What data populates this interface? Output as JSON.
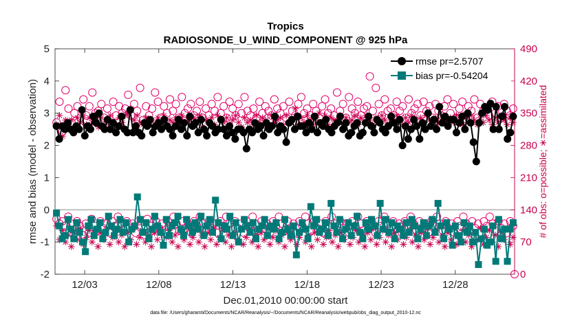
{
  "chart_data": {
    "type": "line",
    "title": "Tropics",
    "subtitle": "RADIOSONDE_U_WIND_COMPONENT @ 925 hPa",
    "xlabel": "Dec.01,2010 00:00:00 start",
    "ylabel": "rmse and bias (model - observation)",
    "ylabel_right": "# of obs: o=possible; ∗=assimilated",
    "xlim": [
      0,
      31
    ],
    "ylim": [
      -2,
      5
    ],
    "ylim_right": [
      0,
      490
    ],
    "x_ticks": [
      2,
      7,
      12,
      17,
      22,
      27
    ],
    "x_tick_labels": [
      "12/03",
      "12/08",
      "12/13",
      "12/18",
      "12/23",
      "12/28"
    ],
    "y_ticks": [
      "-2",
      "-1",
      "0",
      "1",
      "2",
      "3",
      "4",
      "5"
    ],
    "y_right_ticks": [
      "0",
      "70",
      "140",
      "210",
      "280",
      "350",
      "420",
      "490"
    ],
    "zero_line": 0,
    "legend_position": "top-right",
    "series": [
      {
        "name": "rmse pr=2.5707",
        "color": "#000000",
        "marker": "circle",
        "values": [
          2.6,
          2.2,
          2.6,
          2.5,
          2.7,
          2.5,
          2.4,
          2.6,
          2.5,
          3.1,
          2.3,
          2.6,
          2.5,
          2.9,
          2.7,
          3.0,
          2.6,
          2.5,
          2.8,
          2.5,
          2.7,
          2.4,
          2.6,
          2.9,
          2.5,
          2.4,
          3.1,
          2.4,
          2.6,
          2.4,
          2.3,
          2.7,
          2.6,
          2.8,
          2.4,
          2.6,
          2.7,
          2.5,
          2.8,
          2.6,
          2.5,
          2.3,
          2.6,
          2.8,
          2.5,
          2.7,
          2.3,
          2.9,
          2.6,
          2.7,
          2.4,
          2.8,
          2.5,
          2.3,
          2.7,
          2.6,
          2.4,
          2.5,
          2.8,
          2.5,
          2.3,
          2.6,
          2.4,
          2.2,
          2.5,
          2.5,
          2.4,
          1.9,
          2.5,
          2.4,
          2.7,
          2.5,
          2.6,
          2.3,
          2.7,
          2.5,
          2.6,
          2.9,
          2.4,
          2.6,
          2.5,
          2.1,
          2.7,
          2.8,
          2.5,
          2.9,
          2.6,
          2.6,
          2.4,
          2.7,
          2.5,
          2.9,
          2.4,
          2.7,
          2.6,
          2.8,
          2.5,
          2.4,
          2.6,
          2.7,
          2.9,
          2.5,
          2.7,
          2.3,
          2.4,
          2.6,
          2.7,
          2.3,
          2.4,
          2.7,
          2.9,
          2.6,
          2.4,
          2.8,
          2.7,
          2.5,
          2.4,
          2.6,
          2.9,
          2.7,
          2.5,
          2.8,
          2.0,
          2.6,
          2.2,
          2.5,
          2.8,
          2.6,
          2.2,
          2.7,
          2.5,
          3.0,
          2.6,
          2.8,
          2.5,
          3.2,
          2.7,
          2.9,
          2.6,
          2.8,
          2.8,
          2.4,
          2.7,
          2.9,
          2.5,
          3.0,
          2.7,
          2.1,
          1.5,
          2.7,
          3.0,
          3.2,
          3.1,
          3.3,
          2.5,
          3.2,
          2.5,
          2.9,
          3.2,
          2.2,
          2.4,
          2.9
        ]
      },
      {
        "name": "bias pr=-0.54204",
        "color": "#007a78",
        "marker": "square",
        "values": [
          -0.1,
          -0.5,
          -0.9,
          -0.8,
          -0.3,
          -0.6,
          -0.9,
          -0.4,
          -0.7,
          -1.0,
          -1.3,
          -0.5,
          -0.3,
          -0.8,
          -0.6,
          -0.4,
          -0.9,
          -0.7,
          -0.2,
          -0.5,
          -0.8,
          -0.6,
          -0.3,
          -0.7,
          -0.4,
          -1.0,
          -0.6,
          -0.5,
          0.4,
          -0.3,
          -0.7,
          -0.4,
          -0.9,
          -0.6,
          -0.2,
          -0.5,
          -0.7,
          -1.1,
          -0.3,
          -0.8,
          -0.5,
          -0.4,
          -0.2,
          -0.6,
          -0.8,
          -0.3,
          -0.5,
          -0.7,
          -0.4,
          -0.6,
          -0.2,
          -0.8,
          -0.5,
          -0.3,
          -0.7,
          0.3,
          -0.4,
          -0.9,
          -0.5,
          -0.6,
          -0.2,
          -0.8,
          -0.4,
          -1.0,
          -0.6,
          -0.3,
          -0.5,
          -0.7,
          -0.4,
          -0.9,
          -0.6,
          -0.5,
          -0.3,
          -0.8,
          -0.5,
          -0.6,
          -0.4,
          -0.9,
          -0.7,
          -0.3,
          -0.6,
          -0.8,
          -0.5,
          -1.4,
          -0.7,
          -0.4,
          -0.6,
          -0.9,
          0.1,
          -0.5,
          -0.3,
          -0.7,
          -0.6,
          -0.4,
          -0.8,
          0.2,
          -0.5,
          -0.7,
          -0.3,
          -0.9,
          -0.6,
          -0.4,
          -0.8,
          -0.5,
          -0.2,
          -0.7,
          -0.9,
          -0.4,
          -0.6,
          -0.3,
          -0.5,
          -0.8,
          0.2,
          -0.6,
          -0.3,
          -0.7,
          -0.4,
          -0.9,
          -0.5,
          -0.6,
          -0.8,
          -0.4,
          -0.7,
          -0.3,
          -0.5,
          -0.9,
          -0.6,
          -0.4,
          -0.8,
          -0.5,
          -0.3,
          -0.7,
          0.2,
          -0.5,
          -0.9,
          -0.4,
          -0.6,
          -1.1,
          -0.5,
          -0.8,
          -1.0,
          -0.4,
          -0.7,
          -0.5,
          -1.0,
          -0.7,
          -1.7,
          -0.9,
          -0.6,
          -1.1,
          -1.0,
          -0.5,
          -1.6,
          -0.3,
          -0.9,
          -0.6,
          -1.6,
          -0.6,
          -0.4
        ]
      },
      {
        "name": "possible obs",
        "color": "#e3006a",
        "marker": "open-circle",
        "axis": "right",
        "values": [
          330,
          375,
          310,
          400,
          360,
          330,
          350,
          365,
          340,
          380,
          345,
          365,
          395,
          350,
          355,
          370,
          340,
          360,
          330,
          375,
          345,
          365,
          350,
          360,
          390,
          345,
          370,
          355,
          405,
          335,
          365,
          345,
          360,
          395,
          375,
          340,
          365,
          350,
          380,
          355,
          370,
          340,
          385,
          350,
          360,
          370,
          345,
          355,
          375,
          340,
          360,
          345,
          370,
          355,
          385,
          350,
          365,
          340,
          375,
          360,
          345,
          370,
          350,
          385,
          355,
          345,
          360,
          340,
          375,
          350,
          365,
          355,
          345,
          380,
          360,
          350,
          365,
          340,
          375,
          355,
          345,
          370,
          385,
          350,
          360,
          345,
          370,
          355,
          340,
          365,
          380,
          350,
          360,
          345,
          395,
          355,
          370,
          340,
          385,
          360,
          350,
          375,
          345,
          360,
          365,
          430,
          355,
          405,
          370,
          345,
          380,
          355,
          360,
          345,
          375,
          355,
          365,
          340,
          380,
          350,
          360,
          370,
          345,
          375,
          355,
          365,
          340,
          370,
          355,
          345,
          365,
          380,
          350,
          370,
          340,
          360,
          375,
          345,
          365,
          355,
          380,
          340,
          370,
          355,
          360,
          345,
          375,
          350,
          365,
          340,
          370,
          355,
          345,
          360
        ]
      },
      {
        "name": "assimilated obs",
        "color": "#c8004e",
        "marker": "asterisk",
        "axis": "right",
        "values": [
          325,
          345,
          300,
          335,
          325,
          335,
          315,
          340,
          330,
          345,
          325,
          340,
          330,
          335,
          320,
          340,
          325,
          335,
          345,
          330,
          325,
          340,
          330,
          345,
          350,
          360,
          335,
          345,
          330,
          325,
          340,
          330,
          335,
          325,
          340,
          330,
          345,
          320,
          335,
          330,
          340,
          325,
          345,
          330,
          335,
          325,
          340,
          330,
          345,
          320,
          335,
          330,
          340,
          325,
          345,
          335,
          330,
          340,
          325,
          335,
          345,
          330,
          320,
          340,
          330,
          335,
          325,
          345,
          330,
          340,
          335,
          325,
          345,
          330,
          335,
          340,
          325,
          345,
          330,
          335,
          360,
          325,
          340,
          330,
          345,
          335,
          325,
          340,
          350,
          330,
          345,
          325,
          340,
          335,
          330,
          345,
          325,
          340,
          330,
          335,
          345,
          325,
          340,
          330,
          345,
          335,
          325,
          340,
          330,
          345,
          335,
          325,
          340,
          330,
          345,
          335,
          325,
          340,
          330,
          345,
          335,
          325,
          340,
          330,
          345,
          335,
          325,
          340,
          330,
          345,
          335,
          325,
          340,
          330,
          345,
          335,
          325,
          340,
          330,
          345,
          335,
          325,
          340,
          330,
          345,
          335,
          325,
          340,
          330,
          345,
          335,
          325,
          340,
          330
        ]
      },
      {
        "name": "possible obs (bias)",
        "color": "#e3006a",
        "marker": "open-circle",
        "axis": "right",
        "values": [
          120,
          110,
          115,
          105,
          125,
          110,
          95,
          115,
          105,
          85,
          110,
          90,
          120,
          105,
          95,
          115,
          100,
          110,
          90,
          115,
          105,
          125,
          110,
          95,
          115,
          100,
          110,
          90,
          115,
          105,
          85,
          120,
          105,
          95,
          115,
          100,
          110,
          90,
          115,
          105,
          125,
          110,
          95,
          115,
          100,
          110,
          90,
          115,
          105,
          125,
          110,
          95,
          115,
          100,
          110,
          90,
          115,
          105,
          125,
          110,
          95,
          115,
          100,
          110,
          90,
          115,
          105,
          125,
          110,
          95,
          115,
          100,
          110,
          90,
          115,
          105,
          125,
          110,
          95,
          115,
          100,
          110,
          90,
          115,
          105,
          125,
          110,
          95,
          115,
          100,
          110,
          90,
          115,
          105,
          125,
          110,
          95,
          115,
          100,
          110,
          90,
          115,
          105,
          125,
          110,
          95,
          115,
          100,
          110,
          90,
          115,
          105,
          125,
          110,
          95,
          115,
          100,
          110,
          90,
          115,
          105,
          125,
          110,
          95,
          115,
          100,
          110,
          90,
          115,
          105,
          125,
          110,
          95,
          115,
          100,
          110,
          90,
          115,
          105,
          125,
          110,
          95,
          115,
          100,
          110,
          90,
          115,
          105,
          125,
          110,
          95,
          115,
          100,
          110,
          90,
          115,
          105
        ]
      },
      {
        "name": "assimilated obs (bias)",
        "color": "#c8004e",
        "marker": "asterisk",
        "axis": "right",
        "values": [
          105,
          75,
          95,
          70,
          85,
          60,
          90,
          75,
          100,
          65,
          80,
          95,
          70,
          85,
          60,
          90,
          75,
          100,
          65,
          80,
          95,
          70,
          85,
          60,
          90,
          75,
          100,
          65,
          80,
          95,
          70,
          85,
          60,
          90,
          75,
          100,
          65,
          80,
          95,
          70,
          85,
          60,
          90,
          75,
          100,
          65,
          80,
          95,
          70,
          85,
          60,
          90,
          75,
          100,
          65,
          80,
          95,
          70,
          85,
          60,
          90,
          75,
          100,
          65,
          80,
          95,
          70,
          85,
          60,
          90,
          75,
          100,
          65,
          80,
          95,
          70,
          85,
          60,
          90,
          75,
          100,
          65,
          80,
          95,
          70,
          85,
          60,
          90,
          75,
          100,
          65,
          80,
          95,
          70,
          85,
          60,
          90,
          75,
          100,
          65,
          80,
          95,
          70,
          85,
          60,
          90,
          75,
          100,
          65,
          80,
          95,
          70,
          85,
          60,
          90,
          75,
          100,
          65,
          80,
          95,
          70,
          85,
          60,
          90,
          75,
          100,
          65,
          80,
          95,
          70,
          85,
          60,
          90,
          75,
          100,
          65,
          80,
          95,
          70,
          85,
          60,
          90,
          75,
          100,
          65,
          80,
          95,
          70,
          85,
          60,
          90,
          75,
          100,
          65,
          80
        ]
      }
    ]
  },
  "footer_text": "data file: /Users/gharamti/Documents/NCAR/Reanalysis/~/Documents/NCAR/Reanalysis/webpub/obs_diag_output_2010-12.nc"
}
